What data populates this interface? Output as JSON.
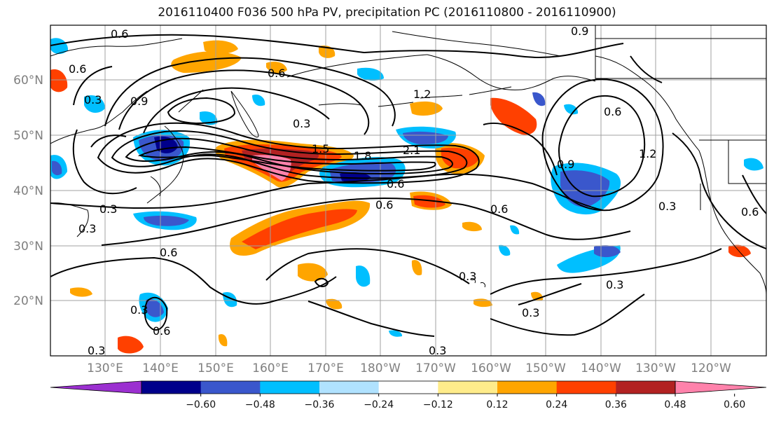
{
  "title": "2016110400 F036 500 hPa PV, precipitation PC (2016110800 - 2016110900)",
  "map": {
    "lat_ticks": [
      {
        "label": "60°N",
        "lat": 60
      },
      {
        "label": "50°N",
        "lat": 50
      },
      {
        "label": "40°N",
        "lat": 40
      },
      {
        "label": "30°N",
        "lat": 30
      },
      {
        "label": "20°N",
        "lat": 20
      }
    ],
    "lon_ticks": [
      "130°E",
      "140°E",
      "150°E",
      "160°E",
      "170°E",
      "180°W",
      "170°W",
      "160°W",
      "150°W",
      "140°W",
      "130°W",
      "120°W"
    ],
    "lat_range": [
      10,
      70
    ],
    "lon_range": [
      120,
      250
    ]
  },
  "colorbar": {
    "ticks": [
      "−0.60",
      "−0.48",
      "−0.36",
      "−0.24",
      "−0.12",
      "0.12",
      "0.24",
      "0.36",
      "0.48",
      "0.60"
    ],
    "colors": [
      "#9b30d0",
      "#00008b",
      "#3a57cc",
      "#00bfff",
      "#b0e2ff",
      "#ffffff",
      "#ffec8b",
      "#ffa500",
      "#ff4000",
      "#b22222",
      "#ff82ab"
    ]
  },
  "contour_labels": [
    "0.6",
    "0.9",
    "0.6",
    "0.6",
    "0.3",
    "1.2",
    "0.9",
    "0.3",
    "1.8",
    "2.1",
    "1.5",
    "0.6",
    "0.6",
    "0.6",
    "0.9",
    "0.6",
    "1.2",
    "0.3",
    "0.3",
    "0.6",
    "0.6",
    "0.3",
    "0.3",
    "0.3",
    "0.3",
    "0.6",
    "0.3",
    "0.3",
    "0.3"
  ]
}
